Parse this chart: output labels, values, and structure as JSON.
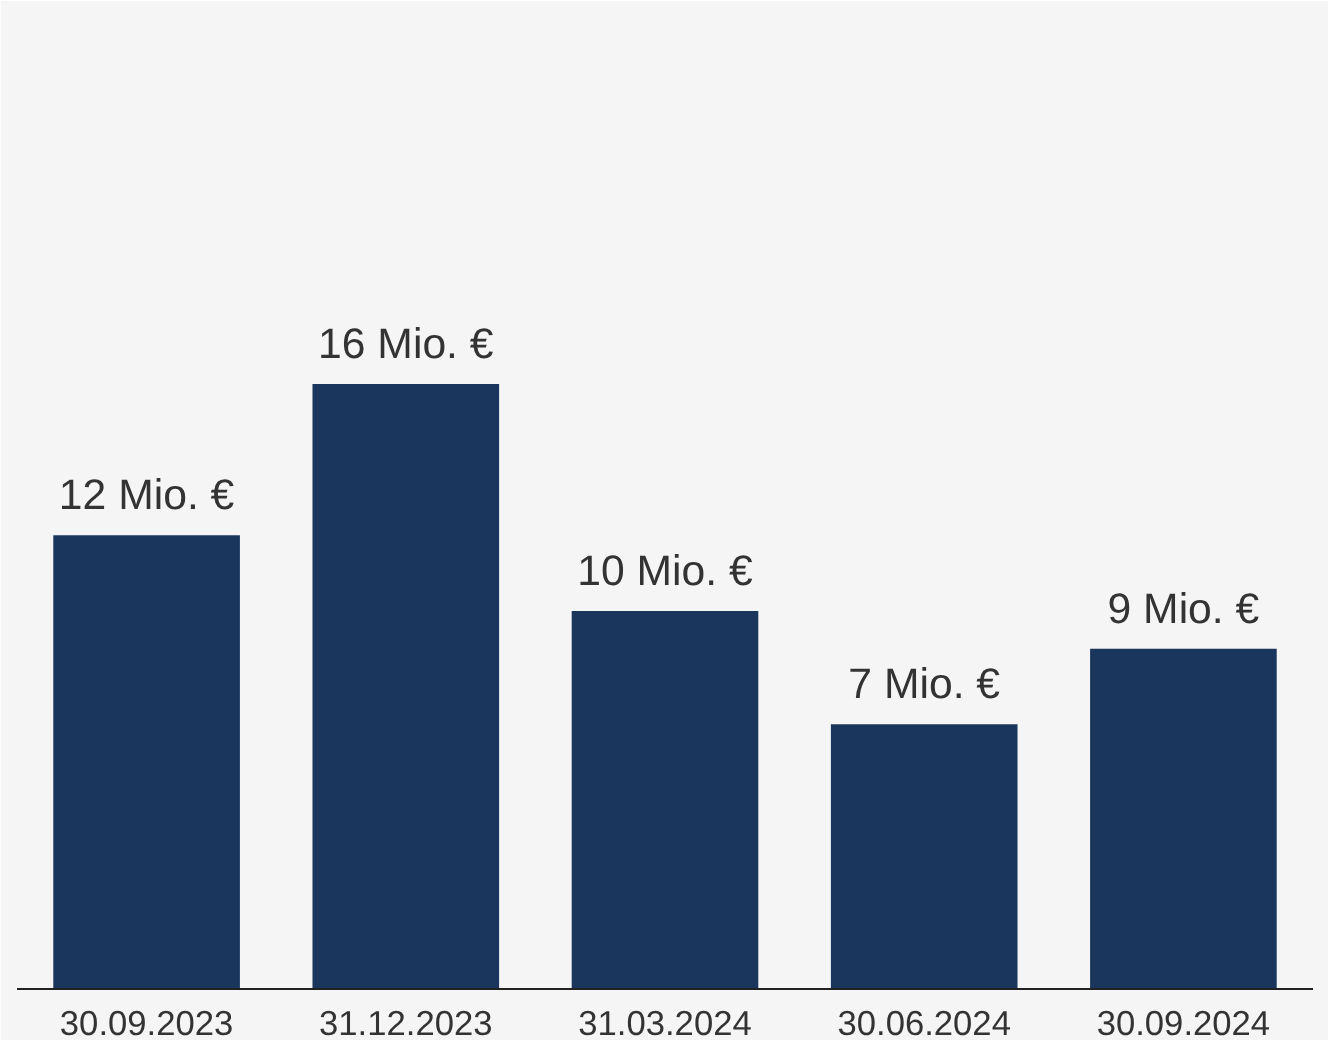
{
  "chart_data": {
    "type": "bar",
    "categories": [
      "30.09.2023",
      "31.12.2023",
      "31.03.2024",
      "30.06.2024",
      "30.09.2024"
    ],
    "values": [
      12,
      16,
      10,
      7,
      9
    ],
    "value_labels": [
      "12 Mio. €",
      "16 Mio. €",
      "10 Mio. €",
      "7 Mio. €",
      "9 Mio. €"
    ],
    "color": "#1b365d",
    "tick_labels": "x"
  }
}
